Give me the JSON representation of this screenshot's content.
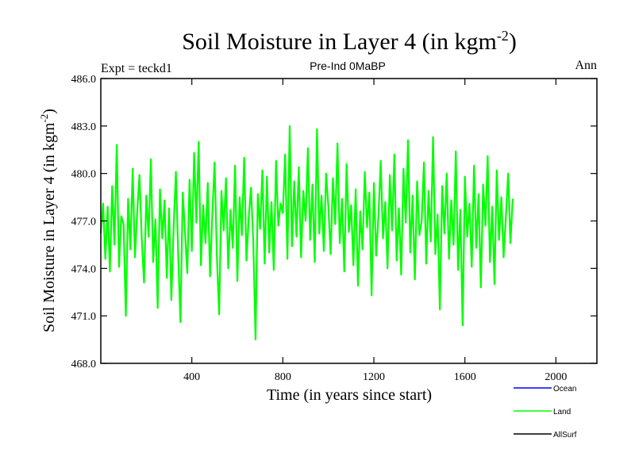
{
  "chart_data": {
    "type": "line",
    "title": "Soil Moisture in Layer 4 (in kgm",
    "title_sup": "-2",
    "title_close": ")",
    "subtitle_left": "Expt = teckd1",
    "subtitle_center": "Pre-Ind 0MaBP",
    "subtitle_right": "Ann",
    "xlabel": "Time (in years since start)",
    "ylabel": "Soil Moisture in Layer 4 (in kgm",
    "ylabel_sup": "-2",
    "ylabel_close": ")",
    "xlim": [
      0,
      2180
    ],
    "ylim": [
      468.0,
      486.0
    ],
    "xticks": [
      400,
      800,
      1200,
      1600,
      2000
    ],
    "xtick_labels": [
      "400",
      "800",
      "1200",
      "1600",
      "2000"
    ],
    "yticks": [
      468.0,
      471.0,
      474.0,
      477.0,
      480.0,
      483.0,
      486.0
    ],
    "ytick_labels": [
      "468.0",
      "471.0",
      "474.0",
      "477.0",
      "480.0",
      "483.0",
      "486.0"
    ],
    "series": [
      {
        "name": "Ocean",
        "color": "#0000ff",
        "values": []
      },
      {
        "name": "Land",
        "color": "#00ff00",
        "x_start": 0,
        "x_step": 10,
        "values": [
          476.2,
          478.1,
          474.6,
          477.9,
          473.8,
          479.2,
          475.5,
          481.8,
          474.1,
          477.3,
          476.8,
          471.0,
          478.4,
          475.2,
          480.3,
          474.7,
          477.6,
          479.9,
          475.8,
          473.1,
          478.6,
          476.0,
          480.9,
          474.4,
          477.1,
          471.5,
          479.0,
          475.9,
          478.3,
          473.4,
          477.8,
          472.0,
          476.6,
          480.1,
          474.9,
          470.6,
          478.8,
          476.3,
          473.7,
          479.6,
          475.1,
          481.3,
          476.9,
          482.0,
          474.2,
          478.0,
          475.6,
          479.4,
          473.5,
          477.4,
          480.7,
          474.8,
          471.1,
          478.9,
          476.4,
          479.7,
          474.0,
          477.7,
          475.3,
          480.5,
          473.2,
          478.5,
          476.1,
          481.0,
          474.5,
          477.2,
          479.1,
          475.7,
          469.5,
          478.7,
          476.5,
          480.2,
          474.3,
          479.8,
          475.0,
          478.2,
          473.9,
          480.8,
          476.7,
          478.1,
          477.5,
          481.2,
          474.6,
          483.0,
          475.4,
          479.5,
          476.0,
          480.4,
          474.7,
          478.9,
          477.0,
          481.6,
          475.8,
          479.3,
          474.4,
          482.8,
          476.2,
          478.6,
          475.1,
          480.0,
          477.9,
          474.9,
          479.7,
          476.8,
          481.9,
          475.6,
          478.4,
          473.8,
          480.6,
          476.3,
          478.0,
          474.2,
          479.0,
          472.9,
          477.6,
          475.2,
          480.1,
          476.6,
          478.8,
          472.3,
          479.4,
          474.8,
          477.3,
          480.8,
          475.9,
          478.2,
          474.0,
          479.9,
          476.4,
          481.2,
          474.5,
          477.8,
          473.6,
          480.3,
          476.9,
          482.1,
          475.0,
          478.6,
          473.3,
          479.5,
          476.1,
          477.0,
          480.7,
          474.3,
          478.9,
          475.7,
          482.3,
          474.9,
          477.4,
          471.4,
          479.2,
          476.2,
          480.0,
          474.6,
          478.3,
          475.5,
          481.4,
          473.9,
          477.7,
          470.4,
          479.8,
          476.0,
          478.1,
          474.1,
          480.5,
          475.3,
          478.7,
          472.8,
          479.3,
          476.7,
          481.1,
          474.4,
          477.9,
          473.0,
          480.2,
          475.8,
          478.5,
          474.7,
          477.2,
          480.0,
          475.6,
          478.4
        ]
      },
      {
        "name": "AllSurf",
        "color": "#000000",
        "values": []
      }
    ],
    "legend_position": "bottom-right"
  }
}
